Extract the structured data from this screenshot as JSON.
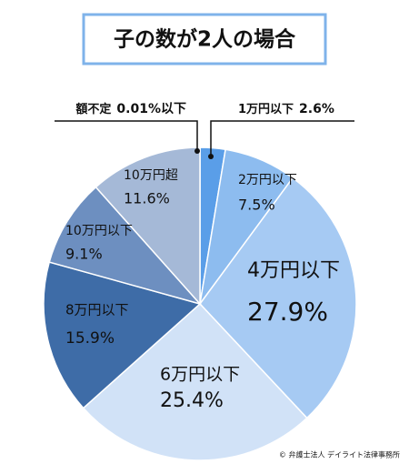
{
  "chart_data": {
    "type": "pie",
    "title": "子の数が2人の場合",
    "categories": [
      "額不定",
      "1万円以下",
      "2万円以下",
      "4万円以下",
      "6万円以下",
      "8万円以下",
      "10万円以下",
      "10万円超"
    ],
    "values": [
      0.01,
      2.6,
      7.5,
      27.9,
      25.4,
      15.9,
      9.1,
      11.6
    ],
    "value_labels": [
      "0.01%以下",
      "2.6%",
      "7.5%",
      "27.9%",
      "25.4%",
      "15.9%",
      "9.1%",
      "11.6%"
    ],
    "colors": [
      "#5a9ee8",
      "#5a9ee8",
      "#8dbcef",
      "#a6caf3",
      "#d1e2f7",
      "#3e6ca7",
      "#6d8fc0",
      "#a5b9d7"
    ]
  },
  "copyright": "© 弁護士法人 デイライト法律事務所"
}
